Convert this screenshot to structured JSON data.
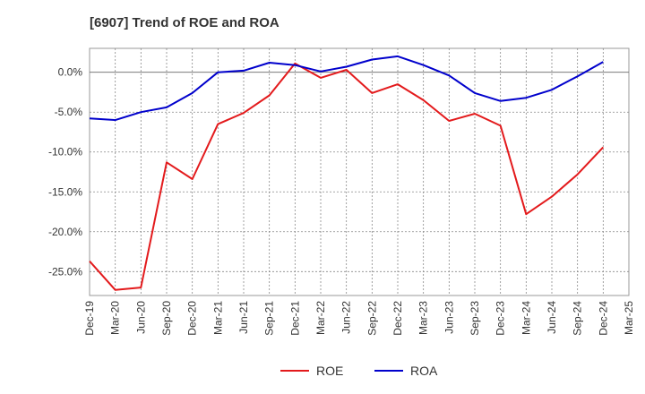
{
  "chart_data": {
    "type": "line",
    "title": "[6907]  Trend of ROE and ROA",
    "xlabel": "",
    "ylabel": "",
    "x": [
      "Dec-19",
      "Mar-20",
      "Jun-20",
      "Sep-20",
      "Dec-20",
      "Mar-21",
      "Jun-21",
      "Sep-21",
      "Dec-21",
      "Mar-22",
      "Jun-22",
      "Sep-22",
      "Dec-22",
      "Mar-23",
      "Jun-23",
      "Sep-23",
      "Dec-23",
      "Mar-24",
      "Jun-24",
      "Sep-24",
      "Dec-24",
      "Mar-25"
    ],
    "ylim": [
      -28,
      3
    ],
    "yticks": [
      0,
      -5,
      -10,
      -15,
      -20,
      -25
    ],
    "ytick_labels": [
      "0.0%",
      "-5.0%",
      "-10.0%",
      "-15.0%",
      "-20.0%",
      "-25.0%"
    ],
    "grid": true,
    "legend_position": "bottom",
    "series": [
      {
        "name": "ROE",
        "color": "#e31a1c",
        "values": [
          -23.7,
          -27.3,
          -27.0,
          -11.3,
          -13.4,
          -6.5,
          -5.1,
          -2.9,
          1.1,
          -0.7,
          0.3,
          -2.6,
          -1.5,
          -3.5,
          -6.1,
          -5.2,
          -6.7,
          -17.8,
          -15.6,
          -12.8,
          -9.4,
          null
        ]
      },
      {
        "name": "ROA",
        "color": "#0000cc",
        "values": [
          -5.8,
          -6.0,
          -5.0,
          -4.4,
          -2.6,
          0.0,
          0.2,
          1.2,
          0.9,
          0.1,
          0.7,
          1.6,
          2.0,
          0.9,
          -0.4,
          -2.6,
          -3.6,
          -3.2,
          -2.2,
          -0.5,
          1.3,
          null
        ]
      }
    ]
  }
}
